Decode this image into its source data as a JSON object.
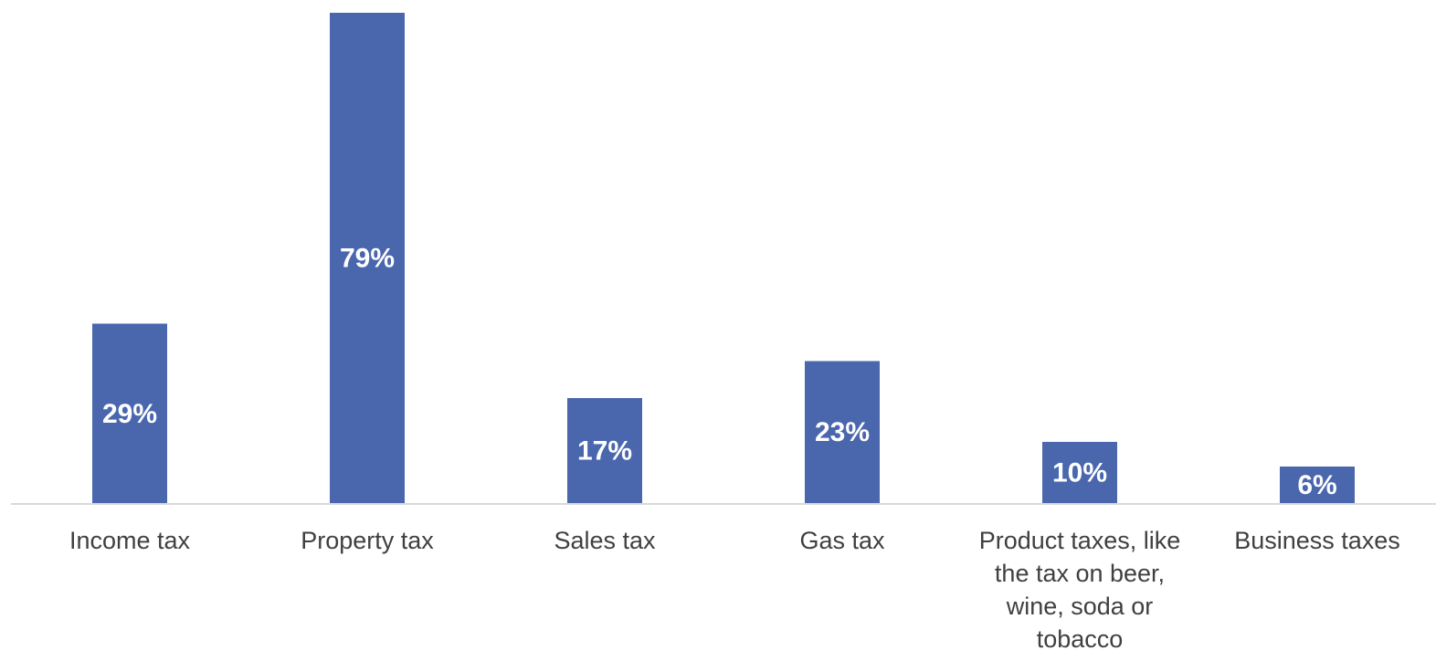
{
  "chart_data": {
    "type": "bar",
    "categories": [
      "Income tax",
      "Property tax",
      "Sales tax",
      "Gas tax",
      "Product taxes, like the tax on beer, wine, soda or tobacco",
      "Business taxes"
    ],
    "values": [
      29,
      79,
      17,
      23,
      10,
      6
    ],
    "data_labels": [
      "29%",
      "79%",
      "17%",
      "23%",
      "10%",
      "6%"
    ],
    "value_format": "percent",
    "title": "",
    "xlabel": "",
    "ylabel": "",
    "ylim": [
      0,
      79
    ],
    "grid": false,
    "legend": "none",
    "colors": {
      "bar": "#4a67ae",
      "axis": "#d9d9d9",
      "label_text": "#404040",
      "data_label_text": "#ffffff"
    }
  }
}
